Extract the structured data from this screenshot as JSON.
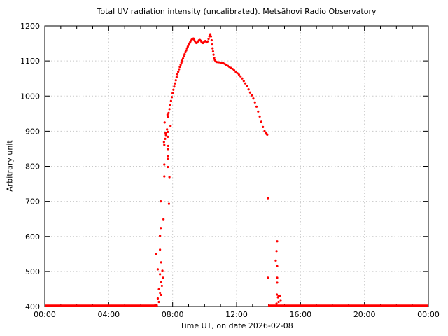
{
  "chart_data": {
    "type": "scatter",
    "title": "Total UV radiation intensity (uncalibrated). Metsähovi Radio Observatory",
    "xlabel": "Time UT, on date 2026-02-08",
    "ylabel": "Arbitrary unit",
    "xlim": [
      0,
      24
    ],
    "ylim": [
      400,
      1200
    ],
    "x_ticks": [
      0,
      4,
      8,
      12,
      16,
      20,
      24
    ],
    "x_tick_labels": [
      "00:00",
      "04:00",
      "08:00",
      "12:00",
      "16:00",
      "20:00",
      "00:00"
    ],
    "x_minor_step_hours": 1,
    "y_ticks": [
      400,
      500,
      600,
      700,
      800,
      900,
      1000,
      1100,
      1200
    ],
    "y_tick_labels": [
      "400",
      "500",
      "600",
      "700",
      "800",
      "900",
      "1000",
      "1100",
      "1200"
    ],
    "grid": true,
    "legend_position": "none",
    "point_color": "#ff0000",
    "baseline_value": 400,
    "baseline_segments_hours": [
      [
        0.0,
        7.07
      ],
      [
        13.97,
        24.0
      ]
    ],
    "series": [
      {
        "name": "UV intensity",
        "points": [
          [
            6.92,
            404
          ],
          [
            6.96,
            549
          ],
          [
            7.01,
            402
          ],
          [
            7.07,
            506
          ],
          [
            7.07,
            423
          ],
          [
            7.14,
            449
          ],
          [
            7.14,
            413
          ],
          [
            7.21,
            602
          ],
          [
            7.21,
            562
          ],
          [
            7.21,
            492
          ],
          [
            7.21,
            439
          ],
          [
            7.26,
            700
          ],
          [
            7.26,
            624
          ],
          [
            7.28,
            526
          ],
          [
            7.28,
            469
          ],
          [
            7.28,
            433
          ],
          [
            7.33,
            459
          ],
          [
            7.36,
            502
          ],
          [
            7.4,
            482
          ],
          [
            7.43,
            649
          ],
          [
            7.46,
            869
          ],
          [
            7.48,
            861
          ],
          [
            7.48,
            805
          ],
          [
            7.48,
            771
          ],
          [
            7.5,
            925
          ],
          [
            7.53,
            878
          ],
          [
            7.56,
            895
          ],
          [
            7.58,
            889
          ],
          [
            7.65,
            905
          ],
          [
            7.68,
            947
          ],
          [
            7.7,
            898
          ],
          [
            7.7,
            884
          ],
          [
            7.7,
            829
          ],
          [
            7.7,
            822
          ],
          [
            7.7,
            798
          ],
          [
            7.71,
            849
          ],
          [
            7.72,
            858
          ],
          [
            7.77,
            693
          ],
          [
            7.8,
            769
          ],
          [
            7.87,
            915
          ],
          [
            7.7,
            940
          ],
          [
            7.75,
            952
          ],
          [
            7.8,
            963
          ],
          [
            7.85,
            974
          ],
          [
            7.9,
            986
          ],
          [
            7.95,
            997
          ],
          [
            8.0,
            1008
          ],
          [
            8.05,
            1018
          ],
          [
            8.1,
            1027
          ],
          [
            8.15,
            1036
          ],
          [
            8.2,
            1045
          ],
          [
            8.25,
            1054
          ],
          [
            8.3,
            1062
          ],
          [
            8.35,
            1069
          ],
          [
            8.4,
            1076
          ],
          [
            8.45,
            1083
          ],
          [
            8.5,
            1089
          ],
          [
            8.55,
            1095
          ],
          [
            8.6,
            1101
          ],
          [
            8.65,
            1107
          ],
          [
            8.7,
            1113
          ],
          [
            8.75,
            1119
          ],
          [
            8.8,
            1125
          ],
          [
            8.85,
            1130
          ],
          [
            8.9,
            1136
          ],
          [
            8.95,
            1141
          ],
          [
            9.0,
            1146
          ],
          [
            9.05,
            1150
          ],
          [
            9.1,
            1154
          ],
          [
            9.15,
            1158
          ],
          [
            9.2,
            1161
          ],
          [
            9.25,
            1163
          ],
          [
            9.3,
            1164
          ],
          [
            9.35,
            1161
          ],
          [
            9.4,
            1156
          ],
          [
            9.45,
            1152
          ],
          [
            9.5,
            1151
          ],
          [
            9.55,
            1153
          ],
          [
            9.6,
            1156
          ],
          [
            9.65,
            1159
          ],
          [
            9.7,
            1160
          ],
          [
            9.75,
            1158
          ],
          [
            9.8,
            1155
          ],
          [
            9.85,
            1152
          ],
          [
            9.9,
            1151
          ],
          [
            9.95,
            1153
          ],
          [
            10.0,
            1156
          ],
          [
            10.05,
            1157
          ],
          [
            10.1,
            1155
          ],
          [
            10.15,
            1153
          ],
          [
            10.2,
            1156
          ],
          [
            10.25,
            1163
          ],
          [
            10.3,
            1170
          ],
          [
            10.33,
            1175
          ],
          [
            10.36,
            1176
          ],
          [
            10.4,
            1170
          ],
          [
            10.44,
            1159
          ],
          [
            10.47,
            1147
          ],
          [
            10.5,
            1136
          ],
          [
            10.53,
            1127
          ],
          [
            10.56,
            1118
          ],
          [
            10.6,
            1109
          ],
          [
            10.64,
            1103
          ],
          [
            10.68,
            1099
          ],
          [
            10.75,
            1097
          ],
          [
            10.85,
            1096
          ],
          [
            10.95,
            1096
          ],
          [
            11.05,
            1095
          ],
          [
            11.15,
            1094
          ],
          [
            11.25,
            1092
          ],
          [
            11.35,
            1089
          ],
          [
            11.45,
            1086
          ],
          [
            11.55,
            1083
          ],
          [
            11.65,
            1080
          ],
          [
            11.75,
            1077
          ],
          [
            11.85,
            1073
          ],
          [
            11.95,
            1069
          ],
          [
            12.05,
            1065
          ],
          [
            12.15,
            1061
          ],
          [
            12.25,
            1056
          ],
          [
            12.35,
            1050
          ],
          [
            12.45,
            1043
          ],
          [
            12.55,
            1036
          ],
          [
            12.65,
            1028
          ],
          [
            12.75,
            1019
          ],
          [
            12.85,
            1010
          ],
          [
            12.95,
            1002
          ],
          [
            13.05,
            993
          ],
          [
            13.15,
            982
          ],
          [
            13.25,
            970
          ],
          [
            13.35,
            956
          ],
          [
            13.45,
            942
          ],
          [
            13.55,
            927
          ],
          [
            13.65,
            912
          ],
          [
            13.75,
            900
          ],
          [
            13.82,
            895
          ],
          [
            13.88,
            892
          ],
          [
            13.92,
            890
          ],
          [
            13.96,
            709
          ],
          [
            13.96,
            482
          ],
          [
            14.45,
            531
          ],
          [
            14.5,
            558
          ],
          [
            14.5,
            408
          ],
          [
            14.52,
            434
          ],
          [
            14.54,
            586
          ],
          [
            14.54,
            515
          ],
          [
            14.54,
            482
          ],
          [
            14.54,
            468
          ],
          [
            14.59,
            426
          ],
          [
            14.63,
            430
          ],
          [
            14.63,
            413
          ],
          [
            14.72,
            431
          ],
          [
            14.76,
            418
          ]
        ]
      }
    ]
  }
}
